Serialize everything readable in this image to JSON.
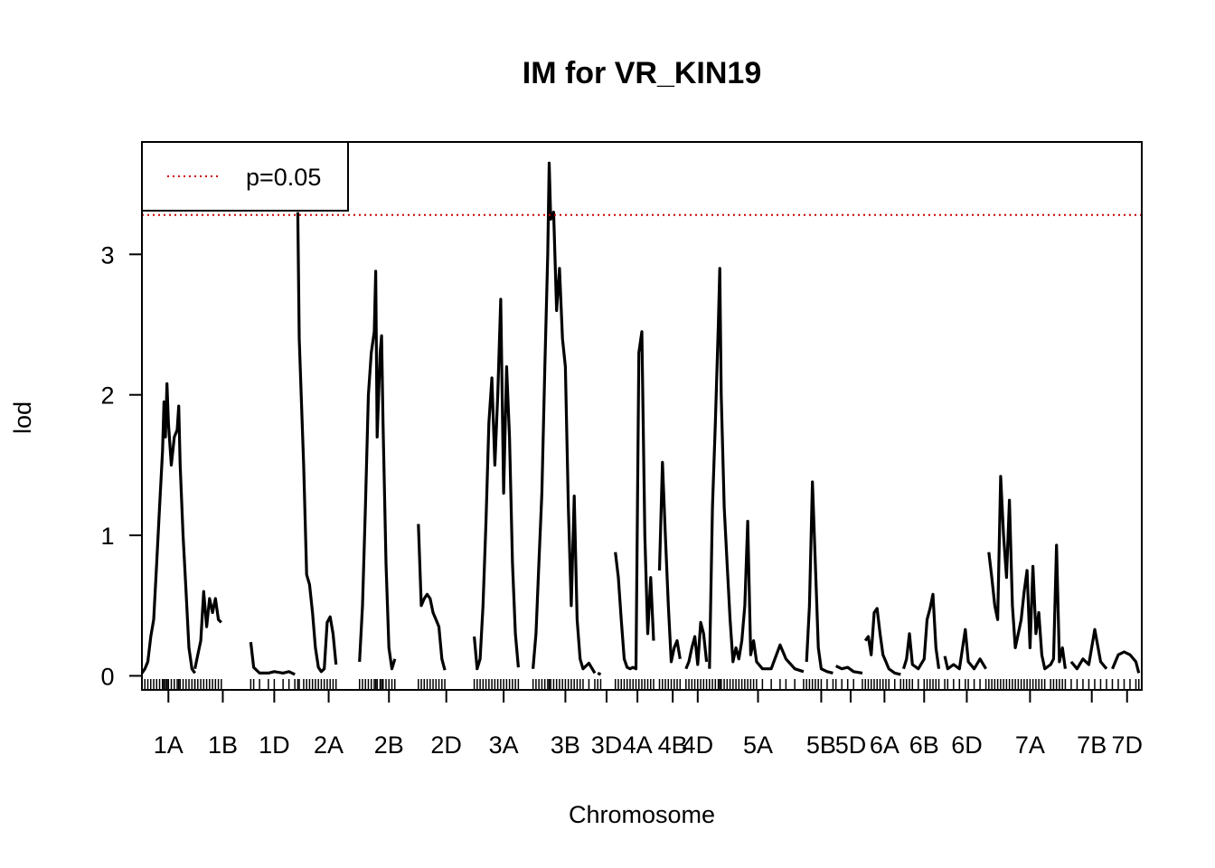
{
  "chart_data": {
    "type": "line",
    "title": "IM for VR_KIN19",
    "xlabel": "Chromosome",
    "ylabel": "lod",
    "ylim": [
      -0.1,
      3.8
    ],
    "yticks": [
      0,
      1,
      2,
      3
    ],
    "ytick_labels": [
      "0",
      "1",
      "2",
      "3"
    ],
    "threshold": {
      "value": 3.28,
      "label": "p=0.05",
      "color": "#cc0000",
      "style": "dotted"
    },
    "legend": {
      "position": "top-left",
      "entries": [
        "p=0.05"
      ]
    },
    "line_color": "#000000",
    "chromosomes": [
      {
        "name": "1A",
        "start": 0,
        "end": 18,
        "points": [
          [
            0,
            0.02
          ],
          [
            1,
            0.05
          ],
          [
            2,
            0.1
          ],
          [
            3,
            0.28
          ],
          [
            4,
            0.4
          ],
          [
            5,
            0.8
          ],
          [
            6,
            1.2
          ],
          [
            7,
            1.6
          ],
          [
            7.5,
            1.95
          ],
          [
            8,
            1.7
          ],
          [
            8.5,
            2.08
          ],
          [
            9,
            1.8
          ],
          [
            10,
            1.5
          ],
          [
            11,
            1.7
          ],
          [
            12,
            1.75
          ],
          [
            12.5,
            1.92
          ],
          [
            13,
            1.5
          ],
          [
            14,
            1.0
          ],
          [
            15,
            0.6
          ],
          [
            16,
            0.2
          ],
          [
            17,
            0.05
          ],
          [
            18,
            0.02
          ]
        ]
      },
      {
        "name": "1B",
        "start": 18,
        "end": 37,
        "points": [
          [
            18,
            0.05
          ],
          [
            19,
            0.15
          ],
          [
            20,
            0.25
          ],
          [
            21,
            0.6
          ],
          [
            22,
            0.35
          ],
          [
            23,
            0.55
          ],
          [
            24,
            0.45
          ],
          [
            25,
            0.55
          ],
          [
            26,
            0.4
          ],
          [
            27,
            0.38
          ]
        ]
      },
      {
        "name": "1D",
        "start": 37,
        "end": 53,
        "points": [
          [
            37,
            0.24
          ],
          [
            38,
            0.06
          ],
          [
            40,
            0.02
          ],
          [
            43,
            0.02
          ],
          [
            45,
            0.03
          ],
          [
            48,
            0.02
          ],
          [
            50,
            0.03
          ],
          [
            52,
            0.01
          ]
        ]
      },
      {
        "name": "2A",
        "start": 53,
        "end": 74,
        "points": [
          [
            53,
            3.3
          ],
          [
            53.5,
            2.4
          ],
          [
            55,
            1.5
          ],
          [
            56,
            0.72
          ],
          [
            57,
            0.65
          ],
          [
            58,
            0.45
          ],
          [
            59,
            0.2
          ],
          [
            60,
            0.06
          ],
          [
            61,
            0.03
          ],
          [
            62,
            0.05
          ],
          [
            63,
            0.38
          ],
          [
            64,
            0.42
          ],
          [
            65,
            0.3
          ],
          [
            66,
            0.08
          ]
        ]
      },
      {
        "name": "2B",
        "start": 74,
        "end": 94,
        "points": [
          [
            74,
            0.1
          ],
          [
            75,
            0.5
          ],
          [
            76,
            1.2
          ],
          [
            77,
            2.0
          ],
          [
            78,
            2.3
          ],
          [
            79,
            2.45
          ],
          [
            79.5,
            2.88
          ],
          [
            80,
            1.7
          ],
          [
            81,
            2.3
          ],
          [
            81.5,
            2.42
          ],
          [
            82,
            1.8
          ],
          [
            83,
            0.8
          ],
          [
            84,
            0.2
          ],
          [
            85,
            0.05
          ],
          [
            86,
            0.12
          ]
        ]
      },
      {
        "name": "2D",
        "start": 94,
        "end": 113,
        "points": [
          [
            94,
            1.08
          ],
          [
            95,
            0.5
          ],
          [
            96,
            0.55
          ],
          [
            97,
            0.58
          ],
          [
            98,
            0.55
          ],
          [
            99,
            0.45
          ],
          [
            100,
            0.4
          ],
          [
            101,
            0.35
          ],
          [
            102,
            0.12
          ],
          [
            103,
            0.04
          ]
        ]
      },
      {
        "name": "3A",
        "start": 113,
        "end": 133,
        "points": [
          [
            113,
            0.28
          ],
          [
            114,
            0.05
          ],
          [
            115,
            0.12
          ],
          [
            116,
            0.5
          ],
          [
            117,
            1.1
          ],
          [
            118,
            1.8
          ],
          [
            119,
            2.12
          ],
          [
            120,
            1.5
          ],
          [
            121,
            2.0
          ],
          [
            122,
            2.68
          ],
          [
            123,
            1.3
          ],
          [
            124,
            2.2
          ],
          [
            125,
            1.7
          ],
          [
            126,
            0.8
          ],
          [
            127,
            0.3
          ],
          [
            128,
            0.06
          ]
        ]
      },
      {
        "name": "3B",
        "start": 133,
        "end": 155,
        "points": [
          [
            133,
            0.05
          ],
          [
            134,
            0.3
          ],
          [
            135,
            0.8
          ],
          [
            136,
            1.3
          ],
          [
            137,
            2.2
          ],
          [
            138,
            3.0
          ],
          [
            138.5,
            3.65
          ],
          [
            139,
            3.25
          ],
          [
            140,
            3.3
          ],
          [
            141,
            2.6
          ],
          [
            142,
            2.9
          ],
          [
            143,
            2.4
          ],
          [
            144,
            2.2
          ],
          [
            145,
            1.2
          ],
          [
            146,
            0.5
          ],
          [
            147,
            1.28
          ],
          [
            148,
            0.4
          ],
          [
            149,
            0.12
          ],
          [
            150,
            0.05
          ],
          [
            152,
            0.09
          ],
          [
            154,
            0.02
          ]
        ]
      },
      {
        "name": "3D",
        "start": 155,
        "end": 161,
        "points": [
          [
            155,
            0.02
          ],
          [
            156,
            0.01
          ]
        ]
      },
      {
        "name": "4A",
        "start": 161,
        "end": 176,
        "points": [
          [
            161,
            0.88
          ],
          [
            162,
            0.7
          ],
          [
            163,
            0.4
          ],
          [
            164,
            0.12
          ],
          [
            165,
            0.06
          ],
          [
            166,
            0.05
          ],
          [
            167,
            0.06
          ],
          [
            168,
            0.05
          ],
          [
            169,
            2.3
          ],
          [
            170,
            2.45
          ],
          [
            171,
            1.0
          ],
          [
            172,
            0.3
          ],
          [
            173,
            0.7
          ],
          [
            174,
            0.25
          ]
        ]
      },
      {
        "name": "4B",
        "start": 176,
        "end": 185,
        "points": [
          [
            176,
            0.75
          ],
          [
            177,
            1.52
          ],
          [
            178,
            1.0
          ],
          [
            179,
            0.5
          ],
          [
            180,
            0.1
          ],
          [
            181,
            0.2
          ],
          [
            182,
            0.25
          ],
          [
            183,
            0.12
          ]
        ]
      },
      {
        "name": "4D",
        "start": 185,
        "end": 193,
        "points": [
          [
            185,
            0.05
          ],
          [
            186,
            0.1
          ],
          [
            187,
            0.2
          ],
          [
            188,
            0.28
          ],
          [
            189,
            0.08
          ],
          [
            190,
            0.38
          ],
          [
            191,
            0.3
          ],
          [
            192,
            0.1
          ]
        ]
      },
      {
        "name": "5A",
        "start": 193,
        "end": 226,
        "points": [
          [
            193,
            0.05
          ],
          [
            194,
            1.2
          ],
          [
            195,
            1.8
          ],
          [
            196,
            2.5
          ],
          [
            196.5,
            2.9
          ],
          [
            197,
            2.0
          ],
          [
            198,
            1.2
          ],
          [
            199,
            0.8
          ],
          [
            200,
            0.4
          ],
          [
            201,
            0.1
          ],
          [
            202,
            0.2
          ],
          [
            203,
            0.12
          ],
          [
            204,
            0.25
          ],
          [
            205,
            0.5
          ],
          [
            206,
            1.1
          ],
          [
            207,
            0.15
          ],
          [
            208,
            0.25
          ],
          [
            209,
            0.1
          ],
          [
            211,
            0.05
          ],
          [
            214,
            0.05
          ],
          [
            217,
            0.22
          ],
          [
            219,
            0.12
          ],
          [
            222,
            0.05
          ],
          [
            225,
            0.03
          ]
        ]
      },
      {
        "name": "5B",
        "start": 226,
        "end": 236,
        "points": [
          [
            226,
            0.1
          ],
          [
            227,
            0.5
          ],
          [
            228,
            1.38
          ],
          [
            229,
            0.8
          ],
          [
            230,
            0.2
          ],
          [
            231,
            0.05
          ],
          [
            233,
            0.03
          ],
          [
            235,
            0.02
          ]
        ]
      },
      {
        "name": "5D",
        "start": 236,
        "end": 246,
        "points": [
          [
            236,
            0.07
          ],
          [
            238,
            0.05
          ],
          [
            240,
            0.06
          ],
          [
            242,
            0.03
          ],
          [
            245,
            0.02
          ]
        ]
      },
      {
        "name": "6A",
        "start": 246,
        "end": 259,
        "points": [
          [
            246,
            0.25
          ],
          [
            247,
            0.28
          ],
          [
            248,
            0.15
          ],
          [
            249,
            0.45
          ],
          [
            250,
            0.48
          ],
          [
            251,
            0.3
          ],
          [
            252,
            0.15
          ],
          [
            253,
            0.1
          ],
          [
            254,
            0.05
          ],
          [
            256,
            0.02
          ],
          [
            258,
            0.01
          ]
        ]
      },
      {
        "name": "6B",
        "start": 259,
        "end": 273,
        "points": [
          [
            259,
            0.05
          ],
          [
            260,
            0.12
          ],
          [
            261,
            0.3
          ],
          [
            262,
            0.08
          ],
          [
            264,
            0.05
          ],
          [
            266,
            0.12
          ],
          [
            267,
            0.4
          ],
          [
            268,
            0.48
          ],
          [
            269,
            0.58
          ],
          [
            270,
            0.2
          ],
          [
            271,
            0.05
          ]
        ]
      },
      {
        "name": "6D",
        "start": 273,
        "end": 288,
        "points": [
          [
            273,
            0.14
          ],
          [
            274,
            0.05
          ],
          [
            276,
            0.08
          ],
          [
            278,
            0.05
          ],
          [
            280,
            0.33
          ],
          [
            281,
            0.1
          ],
          [
            283,
            0.05
          ],
          [
            285,
            0.12
          ],
          [
            287,
            0.05
          ]
        ]
      },
      {
        "name": "7A",
        "start": 288,
        "end": 316,
        "points": [
          [
            288,
            0.88
          ],
          [
            289,
            0.7
          ],
          [
            290,
            0.5
          ],
          [
            291,
            0.4
          ],
          [
            292,
            1.42
          ],
          [
            293,
            1.0
          ],
          [
            294,
            0.7
          ],
          [
            295,
            1.25
          ],
          [
            296,
            0.5
          ],
          [
            297,
            0.2
          ],
          [
            298,
            0.3
          ],
          [
            299,
            0.4
          ],
          [
            300,
            0.6
          ],
          [
            301,
            0.75
          ],
          [
            302,
            0.2
          ],
          [
            303,
            0.78
          ],
          [
            304,
            0.3
          ],
          [
            305,
            0.45
          ],
          [
            306,
            0.15
          ],
          [
            307,
            0.05
          ],
          [
            309,
            0.08
          ],
          [
            310,
            0.12
          ],
          [
            311,
            0.93
          ],
          [
            312,
            0.1
          ],
          [
            313,
            0.2
          ],
          [
            314,
            0.05
          ]
        ]
      },
      {
        "name": "7B",
        "start": 316,
        "end": 330,
        "points": [
          [
            316,
            0.1
          ],
          [
            318,
            0.05
          ],
          [
            320,
            0.12
          ],
          [
            322,
            0.08
          ],
          [
            324,
            0.33
          ],
          [
            326,
            0.1
          ],
          [
            328,
            0.05
          ]
        ]
      },
      {
        "name": "7D",
        "start": 330,
        "end": 340,
        "points": [
          [
            330,
            0.05
          ],
          [
            332,
            0.15
          ],
          [
            334,
            0.17
          ],
          [
            336,
            0.15
          ],
          [
            338,
            0.1
          ],
          [
            339,
            0.02
          ]
        ]
      }
    ]
  }
}
